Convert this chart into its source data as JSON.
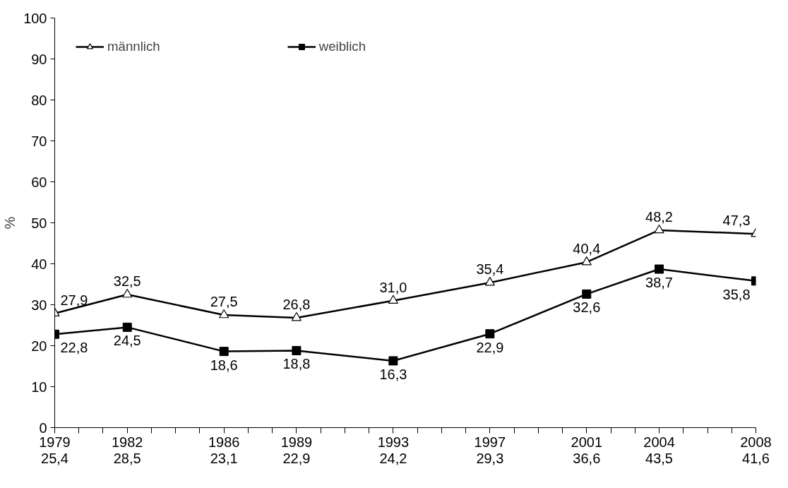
{
  "chart_data": {
    "type": "line",
    "ylabel": "%",
    "x": [
      1979,
      1982,
      1986,
      1989,
      1993,
      1997,
      2001,
      2004,
      2008
    ],
    "series": [
      {
        "name": "männlich",
        "color": "#000000",
        "marker": "triangle",
        "values": [
          27.9,
          32.5,
          27.5,
          26.8,
          31.0,
          35.4,
          40.4,
          48.2,
          47.3
        ],
        "value_labels": [
          "27,9",
          "32,5",
          "27,5",
          "26,8",
          "31,0",
          "35,4",
          "40,4",
          "48,2",
          "47,3"
        ]
      },
      {
        "name": "weiblich",
        "color": "#000000",
        "marker": "square",
        "values": [
          22.8,
          24.5,
          18.6,
          18.8,
          16.3,
          22.9,
          32.6,
          38.7,
          35.8
        ],
        "value_labels": [
          "22,8",
          "24,5",
          "18,6",
          "18,8",
          "16,3",
          "22,9",
          "32,6",
          "38,7",
          "35,8"
        ]
      }
    ],
    "xlim": [
      1979,
      2008
    ],
    "xticks": [
      1979,
      {
        "value": 1980,
        "label": null
      },
      {
        "value": 1981,
        "label": null
      },
      1982,
      {
        "value": 1983,
        "label": null
      },
      {
        "value": 1984,
        "label": null
      },
      {
        "value": 1985,
        "label": null
      },
      1986,
      {
        "value": 1987,
        "label": null
      },
      {
        "value": 1988,
        "label": null
      },
      1989,
      {
        "value": 1990,
        "label": null
      },
      {
        "value": 1991,
        "label": null
      },
      {
        "value": 1992,
        "label": null
      },
      1993,
      {
        "value": 1994,
        "label": null
      },
      {
        "value": 1995,
        "label": null
      },
      {
        "value": 1996,
        "label": null
      },
      1997,
      {
        "value": 1998,
        "label": null
      },
      {
        "value": 1999,
        "label": null
      },
      {
        "value": 2000,
        "label": null
      },
      2001,
      {
        "value": 2002,
        "label": null
      },
      {
        "value": 2003,
        "label": null
      },
      2004,
      {
        "value": 2005,
        "label": null
      },
      {
        "value": 2006,
        "label": null
      },
      {
        "value": 2007,
        "label": null
      },
      2008
    ],
    "annotations": [
      "25,4",
      "28,5",
      "23,1",
      "22,9",
      "24,2",
      "29,3",
      "36,6",
      "43,5",
      "41,6"
    ],
    "ylim": [
      0,
      100
    ],
    "yticks": [
      0,
      10,
      20,
      30,
      40,
      50,
      60,
      70,
      80,
      90,
      100
    ],
    "grid": false,
    "legend": "top left",
    "line_style": "solid"
  }
}
